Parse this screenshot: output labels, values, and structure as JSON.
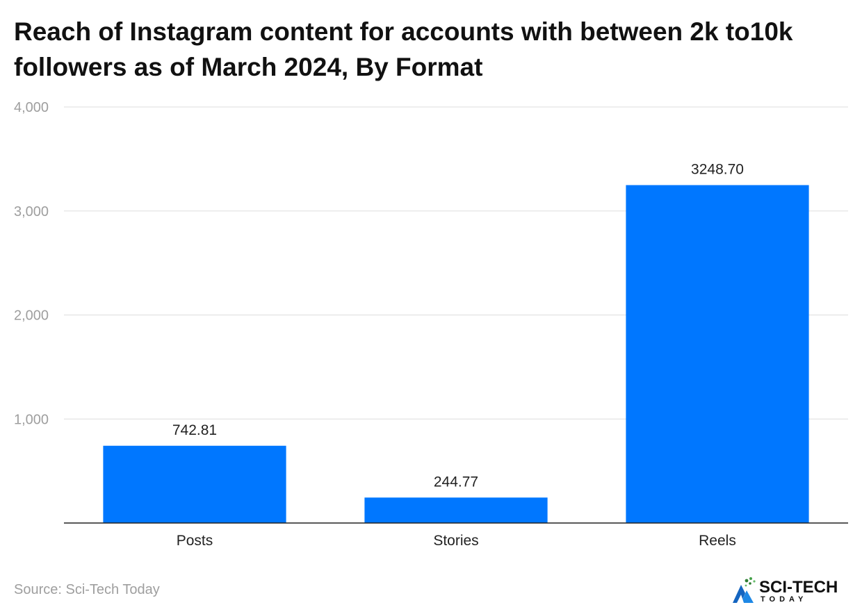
{
  "chart_data": {
    "type": "bar",
    "title": "Reach of Instagram content for accounts with between 2k to10k followers as of March 2024, By Format",
    "categories": [
      "Posts",
      "Stories",
      "Reels"
    ],
    "values": [
      742.81,
      244.77,
      3248.7
    ],
    "data_labels": [
      "742.81",
      "244.77",
      "3248.70"
    ],
    "ylim": [
      0,
      4000
    ],
    "yticks": [
      1000,
      2000,
      3000,
      4000
    ],
    "ytick_labels": [
      "1,000",
      "2,000",
      "3,000",
      "4,000"
    ],
    "xlabel": "",
    "ylabel": "",
    "grid": true,
    "legend": "none",
    "bar_color": "#0077FF"
  },
  "footer": {
    "source": "Source: Sci-Tech Today"
  },
  "logo": {
    "name": "SCI-TECH",
    "sub": "TODAY",
    "accent_color": "#2e7d32",
    "icon": "sci-tech-logo-icon"
  }
}
